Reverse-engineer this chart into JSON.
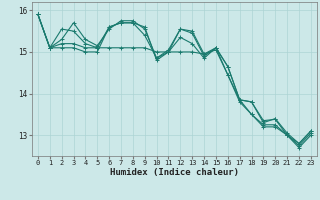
{
  "xlabel": "Humidex (Indice chaleur)",
  "x": [
    0,
    1,
    2,
    3,
    4,
    5,
    6,
    7,
    8,
    9,
    10,
    11,
    12,
    13,
    14,
    15,
    16,
    17,
    18,
    19,
    20,
    21,
    22,
    23
  ],
  "lines": [
    [
      15.9,
      15.1,
      15.55,
      15.5,
      15.2,
      15.1,
      15.6,
      15.7,
      15.7,
      15.4,
      14.85,
      15.05,
      15.55,
      15.5,
      14.95,
      15.1,
      14.65,
      13.85,
      13.8,
      13.3,
      13.4,
      13.05,
      12.8,
      13.1
    ],
    [
      15.9,
      15.1,
      15.2,
      15.2,
      15.1,
      15.1,
      15.1,
      15.1,
      15.1,
      15.1,
      15.0,
      15.0,
      15.0,
      15.0,
      14.95,
      15.05,
      14.45,
      13.85,
      13.5,
      13.25,
      13.25,
      13.0,
      12.7,
      13.0
    ],
    [
      15.9,
      15.1,
      15.3,
      15.7,
      15.3,
      15.15,
      15.55,
      15.75,
      15.75,
      15.55,
      14.85,
      15.0,
      15.55,
      15.45,
      14.9,
      15.1,
      14.65,
      13.85,
      13.8,
      13.35,
      13.38,
      13.0,
      12.8,
      13.1
    ],
    [
      15.9,
      15.1,
      15.1,
      15.1,
      15.0,
      15.0,
      15.6,
      15.7,
      15.7,
      15.6,
      14.8,
      15.0,
      15.35,
      15.2,
      14.85,
      15.1,
      14.45,
      13.8,
      13.5,
      13.2,
      13.2,
      13.0,
      12.75,
      13.05
    ]
  ],
  "line_color": "#1a7a6e",
  "bg_color": "#cce8e8",
  "grid_color": "#add4d4",
  "text_color": "#222222",
  "ylim": [
    12.5,
    16.2
  ],
  "yticks": [
    13,
    14,
    15,
    16
  ],
  "xticks": [
    0,
    1,
    2,
    3,
    4,
    5,
    6,
    7,
    8,
    9,
    10,
    11,
    12,
    13,
    14,
    15,
    16,
    17,
    18,
    19,
    20,
    21,
    22,
    23
  ],
  "marker": "+",
  "markersize": 3.5,
  "linewidth": 0.8,
  "tick_fontsize": 5.0,
  "xlabel_fontsize": 6.5
}
